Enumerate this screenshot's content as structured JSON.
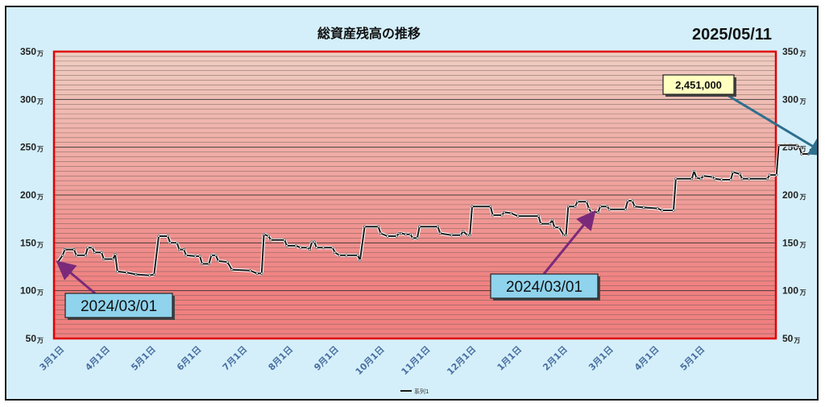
{
  "chart_data": {
    "type": "line",
    "title": "総資産残高の推移",
    "date_label": "2025/05/11",
    "unit_suffix": "万",
    "ylim": [
      50,
      350
    ],
    "yticks": [
      50,
      100,
      150,
      200,
      250,
      300,
      350
    ],
    "grid": true,
    "legend": {
      "position": "bottom",
      "label": "系列1"
    },
    "colors": {
      "line": "#1a1a1a",
      "plot_border": "#e00000",
      "band_low": "#f08080",
      "band_high": "#eff6e4",
      "callout_fill": "#8fd3ec",
      "value_fill": "#ffffc0",
      "arrow_purple": "#7b2a7b",
      "arrow_teal": "#2e6f8e"
    },
    "x_labels": [
      "3月1日",
      "4月1日",
      "5月1日",
      "6月1日",
      "7月1日",
      "8月1日",
      "9月1日",
      "10月1日",
      "11月1日",
      "12月1日",
      "1月1日",
      "2月1日",
      "3月1日",
      "4月1日",
      "5月1日"
    ],
    "series": [
      {
        "name": "系列1",
        "points": [
          [
            0.0,
            130
          ],
          [
            0.1,
            137
          ],
          [
            0.15,
            143
          ],
          [
            0.35,
            143
          ],
          [
            0.4,
            137
          ],
          [
            0.6,
            137
          ],
          [
            0.65,
            145
          ],
          [
            0.75,
            145
          ],
          [
            0.8,
            140
          ],
          [
            0.95,
            140
          ],
          [
            1.0,
            133
          ],
          [
            1.2,
            133
          ],
          [
            1.25,
            138
          ],
          [
            1.3,
            120
          ],
          [
            1.5,
            119
          ],
          [
            1.7,
            117
          ],
          [
            2.0,
            116
          ],
          [
            2.1,
            117
          ],
          [
            2.2,
            157
          ],
          [
            2.4,
            157
          ],
          [
            2.45,
            150
          ],
          [
            2.6,
            150
          ],
          [
            2.65,
            143
          ],
          [
            2.75,
            143
          ],
          [
            2.8,
            137
          ],
          [
            3.0,
            136
          ],
          [
            3.1,
            136
          ],
          [
            3.15,
            128
          ],
          [
            3.3,
            128
          ],
          [
            3.35,
            137
          ],
          [
            3.45,
            137
          ],
          [
            3.5,
            131
          ],
          [
            3.7,
            130
          ],
          [
            3.8,
            122
          ],
          [
            4.2,
            121
          ],
          [
            4.35,
            118
          ],
          [
            4.45,
            118
          ],
          [
            4.5,
            159
          ],
          [
            4.6,
            157
          ],
          [
            4.65,
            153
          ],
          [
            4.95,
            153
          ],
          [
            5.0,
            147
          ],
          [
            5.2,
            147
          ],
          [
            5.3,
            145
          ],
          [
            5.45,
            145
          ],
          [
            5.5,
            143
          ],
          [
            5.55,
            151
          ],
          [
            5.6,
            151
          ],
          [
            5.65,
            145
          ],
          [
            5.8,
            145
          ],
          [
            6.0,
            145
          ],
          [
            6.05,
            140
          ],
          [
            6.15,
            137
          ],
          [
            6.3,
            137
          ],
          [
            6.55,
            137
          ],
          [
            6.6,
            132
          ],
          [
            6.7,
            167
          ],
          [
            7.0,
            167
          ],
          [
            7.05,
            160
          ],
          [
            7.2,
            157
          ],
          [
            7.4,
            157
          ],
          [
            7.45,
            160
          ],
          [
            7.5,
            160
          ],
          [
            7.6,
            159
          ],
          [
            7.7,
            159
          ],
          [
            7.75,
            155
          ],
          [
            7.85,
            155
          ],
          [
            7.9,
            167
          ],
          [
            8.3,
            167
          ],
          [
            8.35,
            160
          ],
          [
            8.6,
            158
          ],
          [
            8.8,
            158
          ],
          [
            8.85,
            162
          ],
          [
            8.95,
            158
          ],
          [
            9.0,
            158
          ],
          [
            9.05,
            188
          ],
          [
            9.45,
            188
          ],
          [
            9.5,
            179
          ],
          [
            9.7,
            179
          ],
          [
            9.75,
            182
          ],
          [
            9.9,
            181
          ],
          [
            10.05,
            178
          ],
          [
            10.5,
            178
          ],
          [
            10.55,
            170
          ],
          [
            10.75,
            170
          ],
          [
            10.8,
            174
          ],
          [
            10.85,
            166
          ],
          [
            10.95,
            166
          ],
          [
            11.05,
            158
          ],
          [
            11.1,
            158
          ],
          [
            11.15,
            188
          ],
          [
            11.3,
            188
          ],
          [
            11.35,
            193
          ],
          [
            11.55,
            193
          ],
          [
            11.6,
            186
          ],
          [
            11.65,
            182
          ],
          [
            11.8,
            182
          ],
          [
            11.85,
            188
          ],
          [
            12.0,
            188
          ],
          [
            12.05,
            185
          ],
          [
            12.4,
            185
          ],
          [
            12.45,
            194
          ],
          [
            12.55,
            194
          ],
          [
            12.6,
            188
          ],
          [
            12.8,
            187
          ],
          [
            13.1,
            186
          ],
          [
            13.2,
            184
          ],
          [
            13.45,
            184
          ],
          [
            13.5,
            217
          ],
          [
            13.85,
            217
          ],
          [
            13.9,
            225
          ],
          [
            13.95,
            218
          ],
          [
            14.05,
            217
          ],
          [
            14.1,
            220
          ],
          [
            14.3,
            219
          ],
          [
            14.35,
            217
          ],
          [
            14.5,
            216
          ],
          [
            14.7,
            216
          ],
          [
            14.75,
            224
          ],
          [
            14.9,
            222
          ],
          [
            14.95,
            217
          ],
          [
            15.1,
            217
          ],
          [
            15.5,
            217
          ],
          [
            15.55,
            221
          ],
          [
            15.7,
            221
          ],
          [
            15.75,
            252
          ],
          [
            16.15,
            252
          ],
          [
            16.2,
            250
          ],
          [
            16.25,
            243
          ],
          [
            16.4,
            243
          ],
          [
            16.45,
            247
          ],
          [
            16.65,
            247
          ],
          [
            16.72,
            245
          ]
        ]
      }
    ],
    "annotations": [
      {
        "label": "2024/03/01",
        "x": 0.0,
        "y": 130
      },
      {
        "label": "2024/03/01",
        "x": 11.65,
        "y": 182
      },
      {
        "label": "2,451,000",
        "x": 16.72,
        "y": 245.1
      }
    ]
  }
}
